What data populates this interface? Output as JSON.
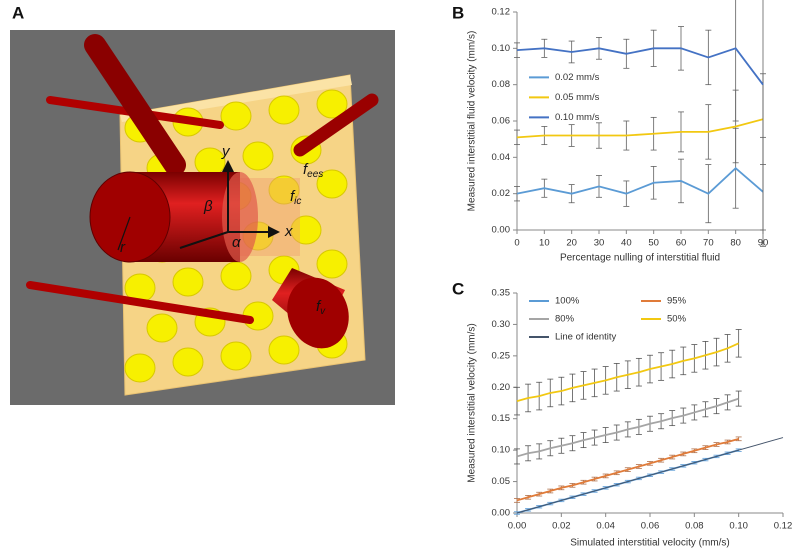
{
  "diagram": {
    "panel_label": "A",
    "labels": [
      {
        "text": "y"
      },
      {
        "text": "x"
      },
      {
        "text": "β"
      },
      {
        "text": "α"
      },
      {
        "text": "r"
      },
      {
        "text": "f",
        "sub": "ees"
      },
      {
        "text": "f",
        "sub": "ic"
      },
      {
        "text": "f",
        "sub": "v"
      }
    ]
  },
  "chart_data": [
    {
      "type": "line",
      "panel_label": "B",
      "xlabel": "Percentage nulling of interstitial fluid",
      "ylabel": "Measured interstitial fluid velocity (mm/s)",
      "x": [
        0,
        10,
        20,
        30,
        40,
        50,
        60,
        70,
        80,
        90
      ],
      "xlim": [
        0,
        90
      ],
      "xticks": [
        0,
        10,
        20,
        30,
        40,
        50,
        60,
        70,
        80,
        90
      ],
      "ylim": [
        0,
        0.12
      ],
      "yticks": [
        {
          "value": 0,
          "label": "0.00"
        },
        {
          "value": 0.02,
          "label": "0.02"
        },
        {
          "value": 0.04,
          "label": "0.04"
        },
        {
          "value": 0.06,
          "label": "0.06"
        },
        {
          "value": 0.08,
          "label": "0.08"
        },
        {
          "value": 0.1,
          "label": "0.10"
        },
        {
          "value": 0.12,
          "label": "0.12"
        }
      ],
      "legend": "center left",
      "legend_columns": 1,
      "series": [
        {
          "name": "0.02 mm/s",
          "color": "#5b9bd5",
          "error_color": "#606060",
          "values": [
            0.02,
            0.023,
            0.02,
            0.024,
            0.02,
            0.026,
            0.027,
            0.02,
            0.034,
            0.021
          ],
          "errors": [
            0.004,
            0.005,
            0.005,
            0.006,
            0.007,
            0.009,
            0.012,
            0.016,
            0.022,
            0.03
          ]
        },
        {
          "name": "0.05 mm/s",
          "color": "#f2c811",
          "error_color": "#606060",
          "values": [
            0.051,
            0.052,
            0.052,
            0.052,
            0.052,
            0.053,
            0.054,
            0.054,
            0.057,
            0.061
          ],
          "errors": [
            0.004,
            0.005,
            0.006,
            0.007,
            0.008,
            0.009,
            0.011,
            0.015,
            0.02,
            0.025
          ]
        },
        {
          "name": "0.10 mm/s",
          "color": "#4472c4",
          "error_color": "#606060",
          "values": [
            0.099,
            0.1,
            0.098,
            0.1,
            0.097,
            0.1,
            0.1,
            0.095,
            0.1,
            0.08
          ],
          "errors": [
            0.004,
            0.005,
            0.006,
            0.006,
            0.008,
            0.01,
            0.012,
            0.015,
            0.04,
            0.08
          ]
        }
      ]
    },
    {
      "type": "line",
      "panel_label": "C",
      "xlabel": "Simulated interstitial velocity (mm/s)",
      "ylabel": "Measured interstitial velocity (mm/s)",
      "x": [
        0,
        0.005,
        0.01,
        0.015,
        0.02,
        0.025,
        0.03,
        0.035,
        0.04,
        0.045,
        0.05,
        0.055,
        0.06,
        0.065,
        0.07,
        0.075,
        0.08,
        0.085,
        0.09,
        0.095,
        0.1
      ],
      "xlim": [
        0,
        0.12
      ],
      "xticks": [
        {
          "value": 0,
          "label": "0.00"
        },
        {
          "value": 0.02,
          "label": "0.02"
        },
        {
          "value": 0.04,
          "label": "0.04"
        },
        {
          "value": 0.06,
          "label": "0.06"
        },
        {
          "value": 0.08,
          "label": "0.08"
        },
        {
          "value": 0.1,
          "label": "0.10"
        },
        {
          "value": 0.12,
          "label": "0.12"
        }
      ],
      "ylim": [
        0,
        0.35
      ],
      "yticks": [
        {
          "value": 0,
          "label": "0.00"
        },
        {
          "value": 0.05,
          "label": "0.05"
        },
        {
          "value": 0.1,
          "label": "0.10"
        },
        {
          "value": 0.15,
          "label": "0.15"
        },
        {
          "value": 0.2,
          "label": "0.20"
        },
        {
          "value": 0.25,
          "label": "0.25"
        },
        {
          "value": 0.3,
          "label": "0.30"
        },
        {
          "value": 0.35,
          "label": "0.35"
        }
      ],
      "legend": "upper left",
      "legend_columns": 2,
      "series": [
        {
          "name": "100%",
          "color": "#5b9bd5",
          "error_color": "#5b9bd5",
          "values": [
            0.0,
            0.005,
            0.01,
            0.015,
            0.02,
            0.025,
            0.03,
            0.035,
            0.04,
            0.045,
            0.05,
            0.055,
            0.06,
            0.065,
            0.07,
            0.075,
            0.08,
            0.085,
            0.09,
            0.095,
            0.1
          ],
          "errors": [
            0.002,
            0.002,
            0.002,
            0.002,
            0.002,
            0.002,
            0.002,
            0.002,
            0.002,
            0.002,
            0.002,
            0.002,
            0.002,
            0.002,
            0.002,
            0.002,
            0.002,
            0.002,
            0.002,
            0.002,
            0.002
          ]
        },
        {
          "name": "95%",
          "color": "#e07b39",
          "error_color": "#b0704a",
          "values": [
            0.02,
            0.025,
            0.03,
            0.035,
            0.04,
            0.044,
            0.049,
            0.054,
            0.059,
            0.064,
            0.069,
            0.074,
            0.079,
            0.084,
            0.089,
            0.094,
            0.099,
            0.104,
            0.109,
            0.113,
            0.118
          ],
          "errors": [
            0.003,
            0.003,
            0.003,
            0.003,
            0.003,
            0.003,
            0.003,
            0.003,
            0.003,
            0.003,
            0.003,
            0.003,
            0.003,
            0.003,
            0.003,
            0.003,
            0.003,
            0.003,
            0.003,
            0.003,
            0.003
          ]
        },
        {
          "name": "80%",
          "color": "#a5a5a5",
          "error_color": "#555555",
          "values": [
            0.09,
            0.095,
            0.098,
            0.103,
            0.107,
            0.111,
            0.116,
            0.12,
            0.124,
            0.128,
            0.133,
            0.137,
            0.142,
            0.146,
            0.151,
            0.155,
            0.16,
            0.165,
            0.17,
            0.176,
            0.182
          ],
          "errors": [
            0.012,
            0.012,
            0.012,
            0.012,
            0.012,
            0.012,
            0.012,
            0.012,
            0.012,
            0.012,
            0.012,
            0.012,
            0.012,
            0.012,
            0.012,
            0.012,
            0.012,
            0.012,
            0.012,
            0.012,
            0.012
          ]
        },
        {
          "name": "50%",
          "color": "#f2c811",
          "error_color": "#555555",
          "values": [
            0.178,
            0.183,
            0.186,
            0.191,
            0.194,
            0.199,
            0.203,
            0.207,
            0.211,
            0.216,
            0.22,
            0.224,
            0.229,
            0.233,
            0.237,
            0.242,
            0.246,
            0.251,
            0.256,
            0.262,
            0.27
          ],
          "errors": [
            0.022,
            0.022,
            0.022,
            0.022,
            0.022,
            0.022,
            0.022,
            0.022,
            0.022,
            0.022,
            0.022,
            0.022,
            0.022,
            0.022,
            0.022,
            0.022,
            0.022,
            0.022,
            0.022,
            0.022,
            0.022
          ]
        },
        {
          "name": "Line of identity",
          "color": "#44546a",
          "x": [
            0,
            0.12
          ],
          "values": [
            0,
            0.12
          ]
        }
      ]
    }
  ]
}
